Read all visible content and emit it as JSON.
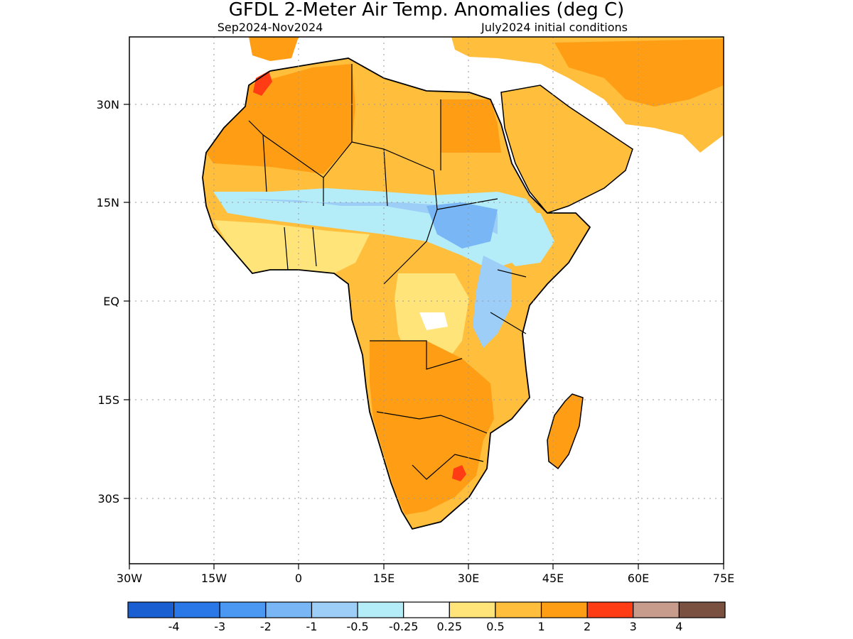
{
  "title": "GFDL 2-Meter Air Temp. Anomalies (deg C)",
  "subtitle_left": "Sep2024-Nov2024",
  "subtitle_right": "July2024 initial conditions",
  "map": {
    "lon_range": [
      -30,
      75
    ],
    "lat_range": [
      -45,
      40
    ],
    "gridlines": "dotted",
    "x_ticks": [
      "30W",
      "15W",
      "0",
      "15E",
      "30E",
      "45E",
      "60E",
      "75E"
    ],
    "y_ticks": [
      "30N",
      "15N",
      "EQ",
      "15S",
      "30S"
    ]
  },
  "legend": {
    "colors": [
      "#1a5fd1",
      "#2a78e8",
      "#4a98f2",
      "#78b6f6",
      "#9ccef8",
      "#b4ecf8",
      "#ffffff",
      "#ffe47a",
      "#ffbe3c",
      "#ff9e14",
      "#ff3c14",
      "#c89c8c",
      "#7a5040"
    ],
    "labels": [
      "-4",
      "-3",
      "-2",
      "-1",
      "-0.5",
      "-0.25",
      "0.25",
      "0.5",
      "1",
      "2",
      "3",
      "4"
    ]
  },
  "colors": {
    "warm_light": "#ffe47a",
    "warm": "#ffbe3c",
    "warmer": "#ff9e14",
    "hot": "#ff3c14",
    "cool_light": "#b4ecf8",
    "cool": "#9ccef8",
    "cooler": "#78b6f6",
    "coolest": "#4a98f2"
  }
}
